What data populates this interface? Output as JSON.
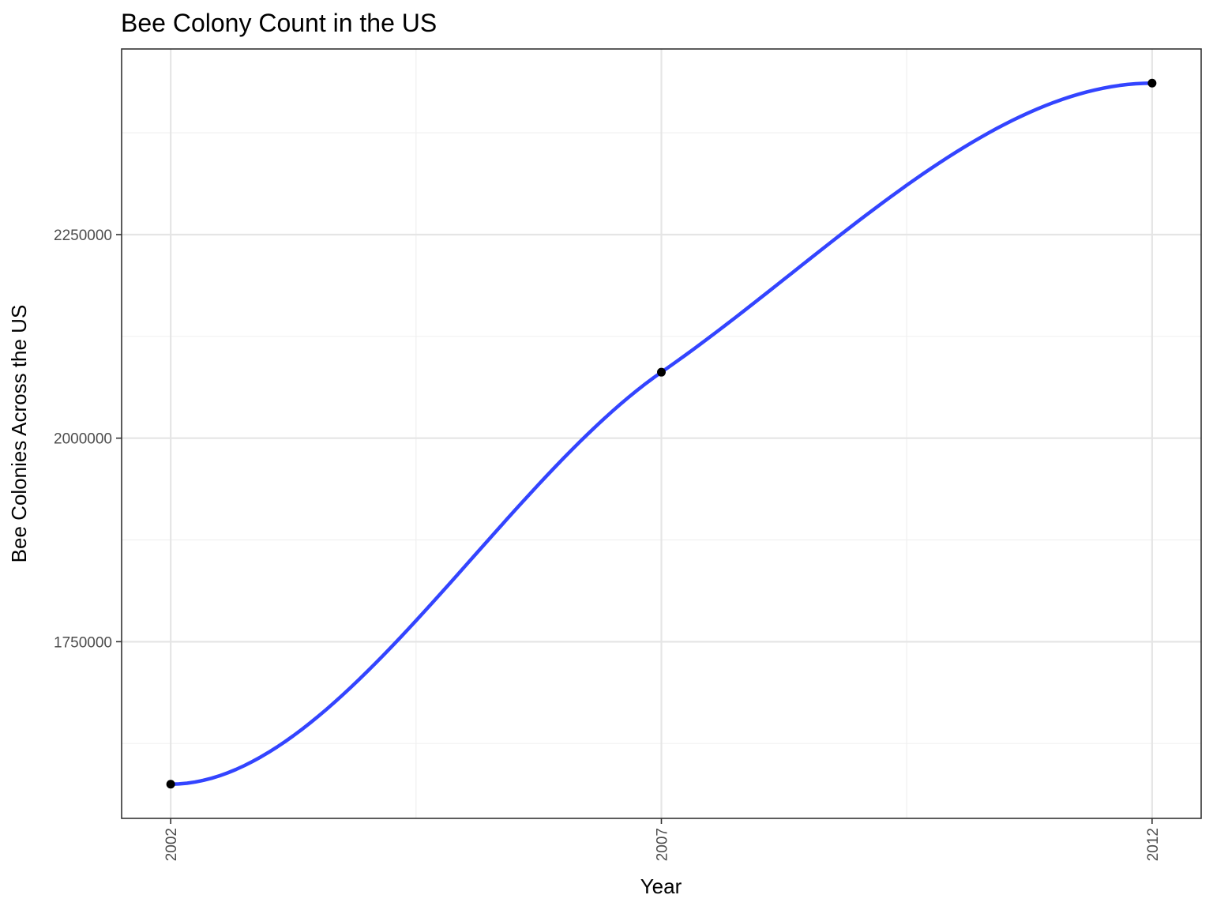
{
  "chart_data": {
    "type": "line",
    "title": "Bee Colony Count in the US",
    "xlabel": "Year",
    "ylabel": "Bee Colonies Across the US",
    "x": [
      2002,
      2007,
      2012
    ],
    "series": [
      {
        "values": [
          1575000,
          2081000,
          2436000
        ],
        "color": "#3344ff",
        "style": "smooth"
      }
    ],
    "xticks": [
      2002,
      2007,
      2012
    ],
    "xtick_labels": [
      "2002",
      "2007",
      "2012"
    ],
    "yticks": [
      1750000,
      2000000,
      2250000
    ],
    "ytick_labels": [
      "1750000",
      "2000000",
      "2250000"
    ],
    "xlim": [
      2001.5,
      2012.5
    ],
    "ylim": [
      1533000,
      2478000
    ],
    "grid": true,
    "point_color": "#000000"
  }
}
